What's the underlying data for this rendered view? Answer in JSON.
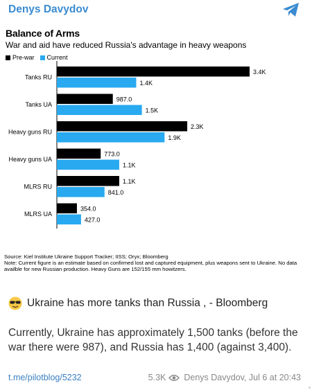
{
  "header": {
    "channel_name": "Denys Davydov",
    "share_icon": "telegram-share-icon"
  },
  "chart_data": {
    "type": "bar",
    "title": "Balance of Arms",
    "subtitle": "War and aid have reduced Russia's advantage in heavy weapons",
    "categories": [
      "Tanks RU",
      "Tanks UA",
      "Heavy guns RU",
      "Heavy guns UA",
      "MLRS RU",
      "MLRS UA"
    ],
    "series": [
      {
        "name": "Pre-war",
        "color": "#000000",
        "values": [
          3400,
          987,
          2300,
          773,
          1100,
          354
        ],
        "labels": [
          "3.4K",
          "987.0",
          "2.3K",
          "773.0",
          "1.1K",
          "354.0"
        ]
      },
      {
        "name": "Current",
        "color": "#29a9f0",
        "values": [
          1400,
          1500,
          1900,
          1100,
          841,
          427
        ],
        "labels": [
          "1.4K",
          "1.5K",
          "1.9K",
          "1.1K",
          "841.0",
          "427.0"
        ]
      }
    ],
    "xlim": [
      0,
      3400
    ],
    "legend_position": "top-left",
    "source": "Source: Kiel Institute Ukraine Support Tracker; IISS; Oryx; Bloomberg",
    "note": "Note: Current figure is an estimate based on confirmed lost and captured equipment, plus weapons sent to Ukraine. No data availble for new Russian production. Heavy Guns are 152/155 mm howitzers."
  },
  "post": {
    "headline": "Ukraine has more tanks than Russia",
    "headline_suffix": " , - Bloomberg",
    "emoji": "sunglasses-emoji",
    "paragraph": "Currently, Ukraine has approximately 1,500 tanks (before the war there were 987), and Russia has 1,400 (against 3,400)."
  },
  "footer": {
    "link": "t.me/pilotblog/5232",
    "views": "5.3K",
    "author_time": "Denys Davydov, Jul 6 at 20:43"
  }
}
